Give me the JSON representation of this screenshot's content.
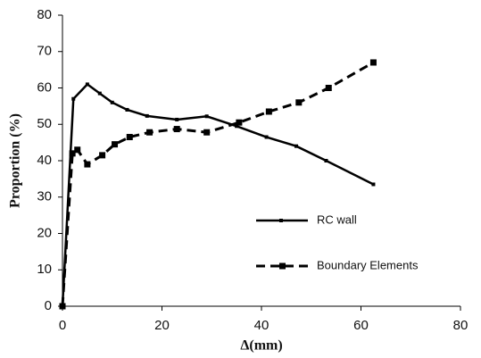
{
  "chart_data": {
    "type": "line",
    "x_label": "Δ(mm)",
    "y_label": "Proportion (%)",
    "series": [
      {
        "name": "RC wall",
        "color": "#000000",
        "line_style": "solid",
        "x": [
          0,
          2.2,
          5,
          7.5,
          10,
          13,
          17,
          23,
          29,
          35,
          41,
          47,
          53,
          62.5
        ],
        "values": [
          0,
          57,
          61,
          58.5,
          56,
          54,
          52.3,
          51.3,
          52.2,
          49.5,
          46.5,
          44,
          40,
          33.5
        ]
      },
      {
        "name": "Boundary Elements",
        "color": "#000000",
        "line_style": "dashed",
        "x": [
          0,
          2,
          3,
          5,
          8,
          10.5,
          13.5,
          17.5,
          23,
          29,
          35.5,
          41.5,
          47.5,
          53.5,
          62.5
        ],
        "values": [
          0,
          42,
          43,
          39,
          41.5,
          44.5,
          46.5,
          47.8,
          48.7,
          47.8,
          50.5,
          53.5,
          56,
          60,
          67
        ]
      }
    ],
    "xlim": [
      0,
      80
    ],
    "xticks": [
      0,
      20,
      40,
      60,
      80
    ],
    "ylim": [
      0,
      80
    ],
    "yticks": [
      0,
      10,
      20,
      30,
      40,
      50,
      60,
      70,
      80
    ],
    "grid": false
  }
}
